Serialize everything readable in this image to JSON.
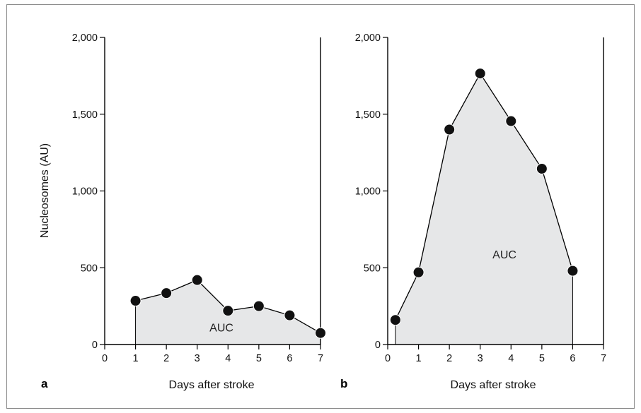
{
  "chart_data": [
    {
      "type": "area",
      "panel": "a",
      "x": [
        1,
        2,
        3,
        4,
        5,
        6,
        7
      ],
      "series": [
        {
          "values": [
            285,
            335,
            420,
            220,
            250,
            190,
            75
          ]
        }
      ],
      "xticks": [
        "0",
        "1",
        "2",
        "3",
        "4",
        "5",
        "6",
        "7"
      ],
      "yticks": [
        "0",
        "500",
        "1,000",
        "1,500",
        "2,000"
      ],
      "xlim": [
        0,
        7
      ],
      "ylim": [
        0,
        2000
      ],
      "xlabel": "Days after stroke",
      "ylabel": "Nucleosomes (AU)",
      "annotation": "AUC",
      "annotation_at": {
        "x": 3.4,
        "y": 85
      },
      "grid": false
    },
    {
      "type": "area",
      "panel": "b",
      "x": [
        0.25,
        1,
        2,
        3,
        4,
        5,
        6
      ],
      "series": [
        {
          "values": [
            160,
            470,
            1400,
            1765,
            1455,
            1145,
            480
          ]
        }
      ],
      "xticks": [
        "0",
        "1",
        "2",
        "3",
        "4",
        "5",
        "6",
        "7"
      ],
      "yticks": [
        "0",
        "500",
        "1,000",
        "1,500",
        "2,000"
      ],
      "xlim": [
        0,
        7
      ],
      "ylim": [
        0,
        2000
      ],
      "xlabel": "Days after stroke",
      "ylabel": "",
      "annotation": "AUC",
      "annotation_at": {
        "x": 3.4,
        "y": 560
      },
      "grid": false
    }
  ]
}
